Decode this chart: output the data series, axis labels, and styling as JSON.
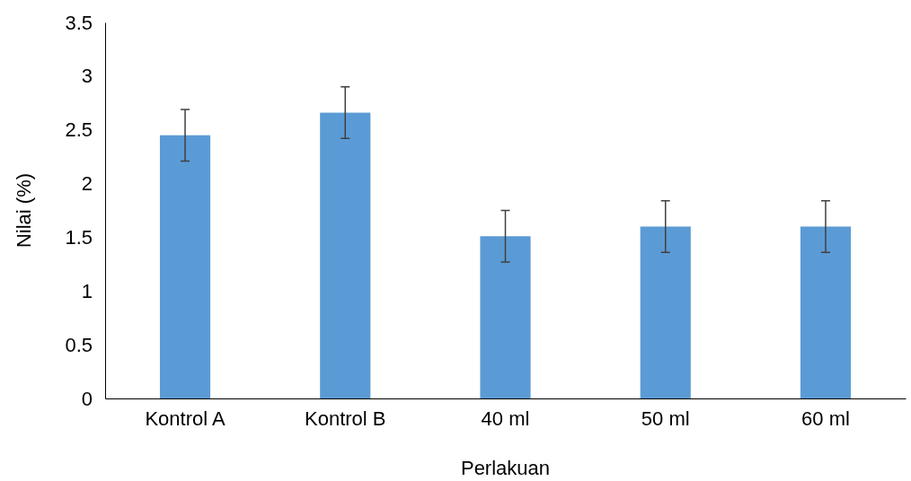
{
  "chart_data": {
    "type": "bar",
    "xlabel": "Perlakuan",
    "ylabel": "Nilai (%)",
    "categories": [
      "Kontrol A",
      "Kontrol B",
      "40 ml",
      "50 ml",
      "60 ml"
    ],
    "values": [
      2.45,
      2.66,
      1.51,
      1.6,
      1.6
    ],
    "errors": [
      0.24,
      0.24,
      0.24,
      0.24,
      0.24
    ],
    "color": "#5b9bd5",
    "ylim": [
      0,
      3.5
    ],
    "yticks": [
      0,
      0.5,
      1,
      1.5,
      2,
      2.5,
      3,
      3.5
    ],
    "grid": false
  }
}
